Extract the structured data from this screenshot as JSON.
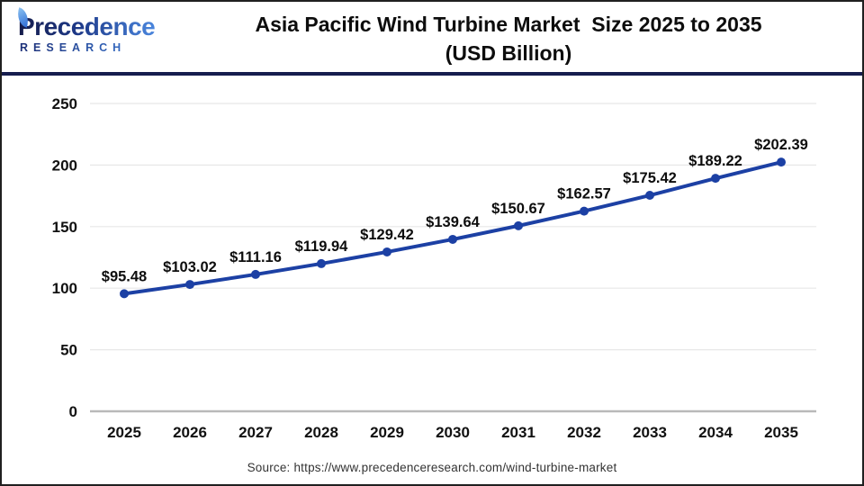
{
  "header": {
    "brand": {
      "name": "Precedence",
      "subtitle": "RESEARCH"
    },
    "title_line1": "Asia Pacific Wind Turbine Market  Size 2025 to 2035",
    "title_line2": "(USD Billion)"
  },
  "chart_data": {
    "type": "line",
    "title": "Asia Pacific Wind Turbine Market Size 2025 to 2035 (USD Billion)",
    "categories": [
      "2025",
      "2026",
      "2027",
      "2028",
      "2029",
      "2030",
      "2031",
      "2032",
      "2033",
      "2034",
      "2035"
    ],
    "series": [
      {
        "name": "Asia Pacific Wind Turbine Market Size (USD Billion)",
        "values": [
          95.48,
          103.02,
          111.16,
          119.94,
          129.42,
          139.64,
          150.67,
          162.57,
          175.42,
          189.22,
          202.39
        ]
      }
    ],
    "data_labels": [
      "$95.48",
      "$103.02",
      "$111.16",
      "$119.94",
      "$129.42",
      "$139.64",
      "$150.67",
      "$162.57",
      "$175.42",
      "$189.22",
      "$202.39"
    ],
    "label_prefix": "$",
    "xlabel": "",
    "ylabel": "",
    "ylim": [
      0,
      250
    ],
    "yticks": [
      0,
      50,
      100,
      150,
      200,
      250
    ],
    "grid": true,
    "legend": "none",
    "line_color": "#1c40a4",
    "marker": "circle"
  },
  "footer": {
    "source": "Source: https://www.precedenceresearch.com/wind-turbine-market"
  },
  "colors": {
    "accent_navy": "#161d4e",
    "grid_line": "#e7e7e7",
    "axis_line": "#b9b9b9",
    "tick_text": "#111111",
    "data_label_text": "#0d0d0d"
  }
}
